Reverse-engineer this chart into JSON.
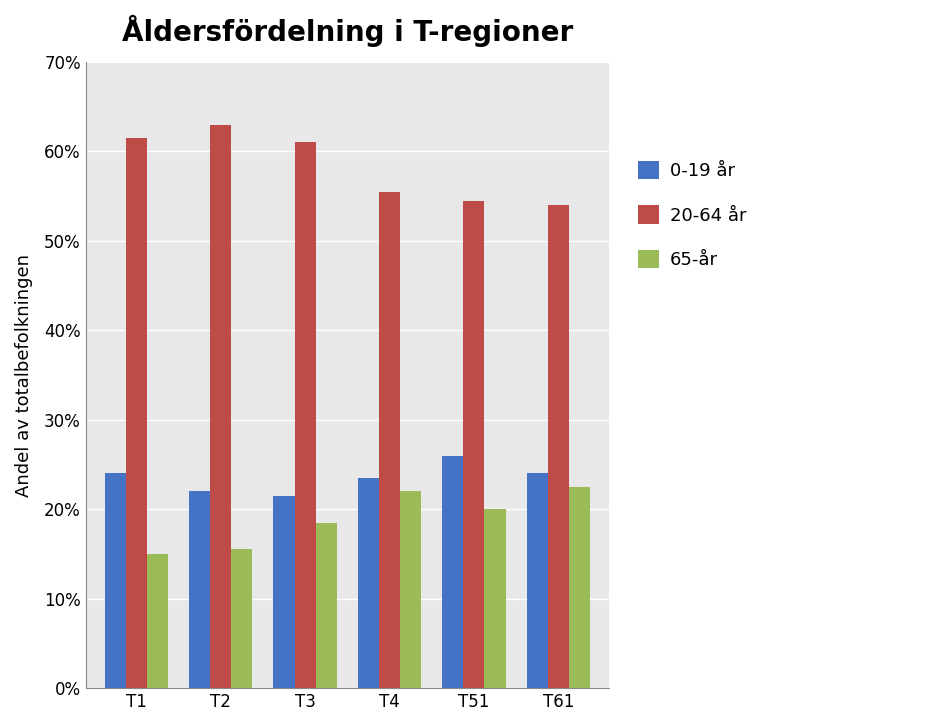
{
  "title": "Åldersfördelning i T-regioner",
  "ylabel": "Andel av totalbefolkningen",
  "categories": [
    "T1",
    "T2",
    "T3",
    "T4",
    "T51",
    "T61"
  ],
  "series": [
    {
      "label": "0-19 år",
      "color": "#4472C4",
      "values": [
        0.24,
        0.22,
        0.215,
        0.235,
        0.26,
        0.24
      ]
    },
    {
      "label": "20-64 år",
      "color": "#BE4B48",
      "values": [
        0.615,
        0.63,
        0.61,
        0.555,
        0.545,
        0.54
      ]
    },
    {
      "label": "65-år",
      "color": "#9BBB59",
      "values": [
        0.15,
        0.155,
        0.185,
        0.22,
        0.2,
        0.225
      ]
    }
  ],
  "ylim": [
    0,
    0.7
  ],
  "yticks": [
    0.0,
    0.1,
    0.2,
    0.3,
    0.4,
    0.5,
    0.6,
    0.7
  ],
  "title_fontsize": 20,
  "axis_label_fontsize": 13,
  "tick_fontsize": 12,
  "legend_fontsize": 13,
  "bar_width": 0.25,
  "background_color": "#FFFFFF",
  "plot_bg_color": "#E8E8E8",
  "grid_color": "#FFFFFF"
}
